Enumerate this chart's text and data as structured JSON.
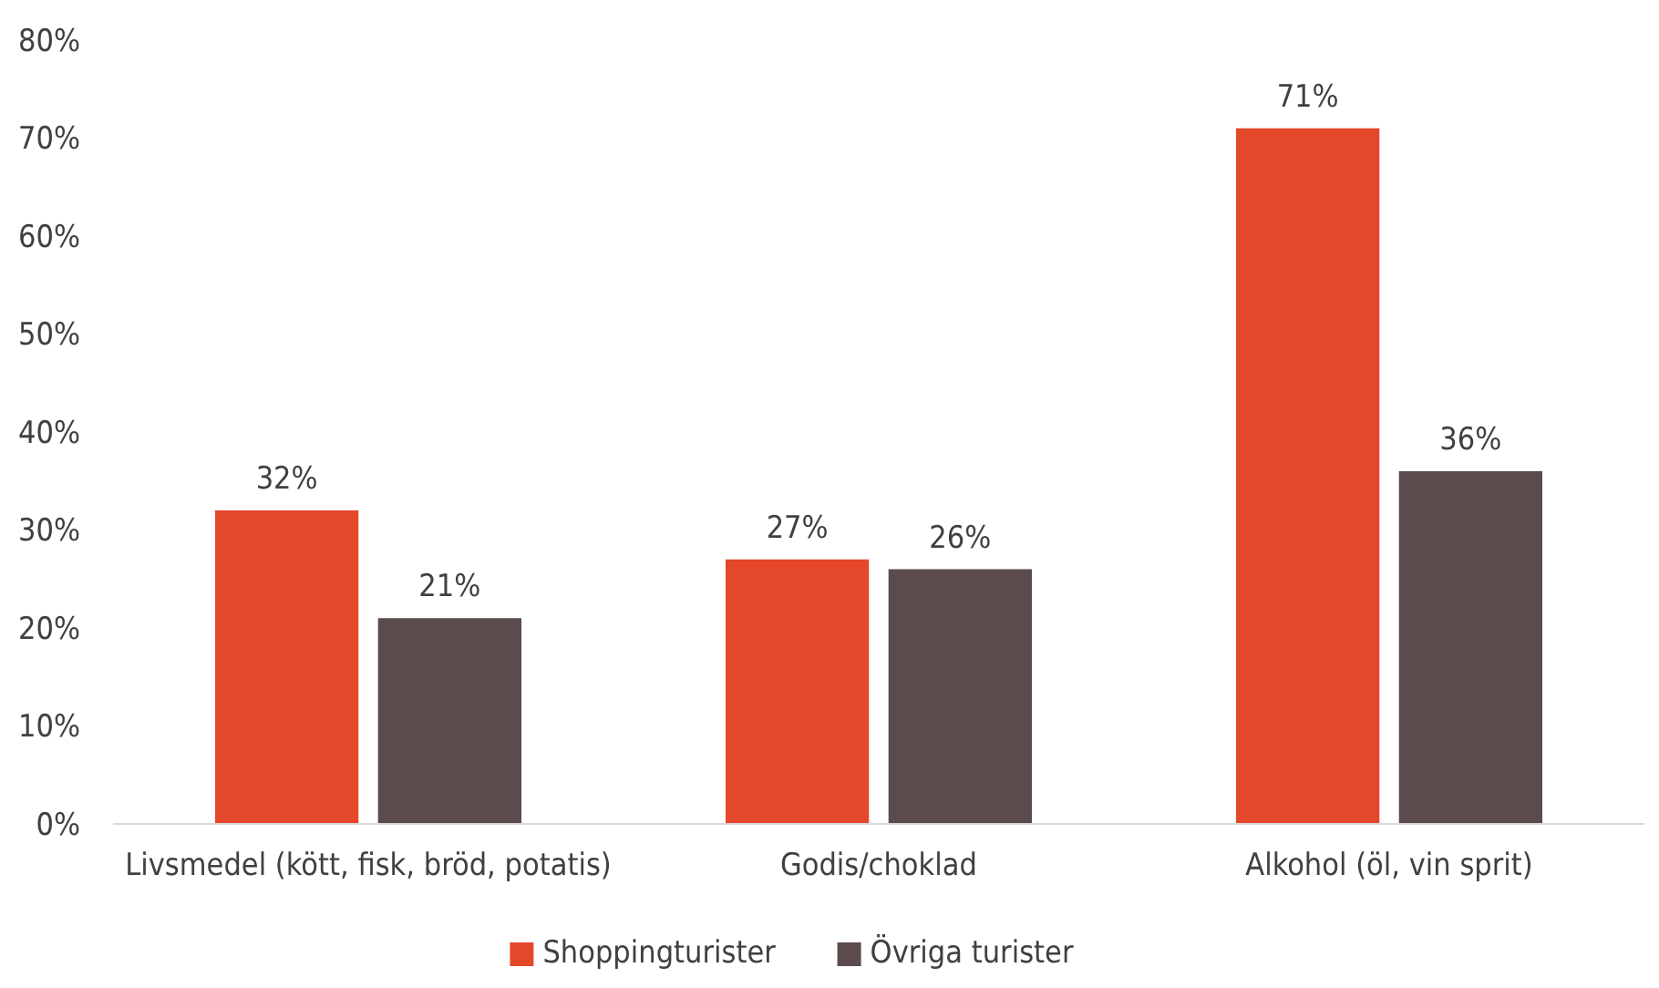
{
  "chart_data": {
    "type": "bar",
    "categories": [
      "Livsmedel (kött, fisk, bröd, potatis)",
      "Godis/choklad",
      "Alkohol (öl, vin sprit)"
    ],
    "series": [
      {
        "name": "Shoppingturister",
        "color": "#e5472b",
        "values": [
          32,
          27,
          71
        ],
        "value_labels": [
          "32%",
          "27%",
          "71%"
        ]
      },
      {
        "name": "Övriga turister",
        "color": "#5b4b4d",
        "values": [
          21,
          26,
          36
        ],
        "value_labels": [
          "21%",
          "26%",
          "36%"
        ]
      }
    ],
    "ylim": [
      0,
      80
    ],
    "yticks": [
      {
        "value": 0,
        "label": "0%"
      },
      {
        "value": 10,
        "label": "10%"
      },
      {
        "value": 20,
        "label": "20%"
      },
      {
        "value": 30,
        "label": "30%"
      },
      {
        "value": 40,
        "label": "40%"
      },
      {
        "value": 50,
        "label": "50%"
      },
      {
        "value": 60,
        "label": "60%"
      },
      {
        "value": 70,
        "label": "70%"
      },
      {
        "value": 80,
        "label": "80%"
      }
    ],
    "grid": false,
    "legend": "bottom"
  }
}
